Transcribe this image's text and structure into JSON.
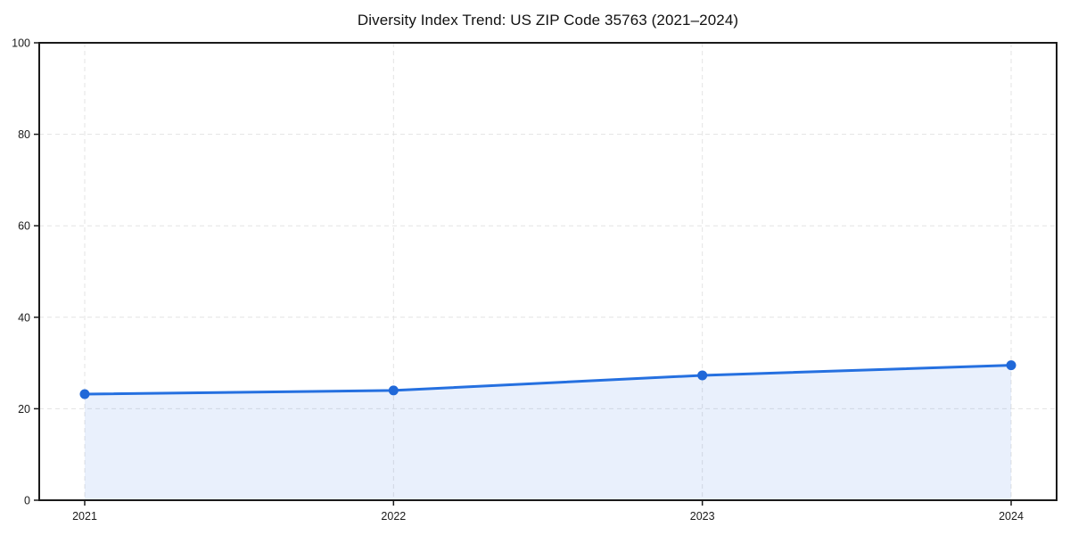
{
  "chart_data": {
    "type": "area",
    "title": "Diversity Index Trend: US ZIP Code 35763 (2021–2024)",
    "categories": [
      "2021",
      "2022",
      "2023",
      "2024"
    ],
    "x": [
      2021,
      2022,
      2023,
      2024
    ],
    "series": [
      {
        "name": "Diversity Index",
        "values": [
          23.2,
          24.0,
          27.3,
          29.5
        ]
      }
    ],
    "xlabel": "",
    "ylabel": "",
    "ylim": [
      0,
      100
    ],
    "yticks": [
      0,
      20,
      40,
      60,
      80,
      100
    ],
    "grid": "dashed-both-axes",
    "legend": "none",
    "marker": "circle",
    "colors": {
      "line": "#2570e0",
      "marker": "#2068d8",
      "fill": "#2570e0",
      "fill_opacity": 0.1,
      "grid": "#e3e3e3",
      "spine": "#1a1a1a",
      "tick_label": "#1a1a1a",
      "title": "#111111",
      "background": "#ffffff"
    }
  }
}
